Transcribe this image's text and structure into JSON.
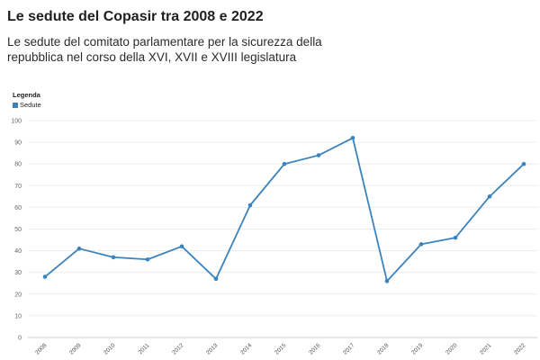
{
  "chart_data": {
    "type": "line",
    "title": "Le sedute del Copasir tra 2008 e 2022",
    "subtitle": "Le sedute del comitato parlamentare per la sicurezza della repubblica nel corso della XVI, XVII e XVIII legislatura",
    "legend": {
      "title": "Legenda",
      "placement": "top-left"
    },
    "categories": [
      "2008",
      "2009",
      "2010",
      "2011",
      "2012",
      "2013",
      "2014",
      "2015",
      "2016",
      "2017",
      "2018",
      "2019",
      "2020",
      "2021",
      "2022"
    ],
    "series": [
      {
        "name": "Sedute",
        "color": "#3b83bd",
        "values": [
          28,
          41,
          37,
          36,
          42,
          27,
          61,
          80,
          84,
          92,
          26,
          43,
          46,
          65,
          80
        ]
      }
    ],
    "ylim": [
      0,
      100
    ],
    "yticks": [
      0,
      10,
      20,
      30,
      40,
      50,
      60,
      70,
      80,
      90,
      100
    ],
    "xlabel": "",
    "ylabel": "",
    "grid": true
  }
}
